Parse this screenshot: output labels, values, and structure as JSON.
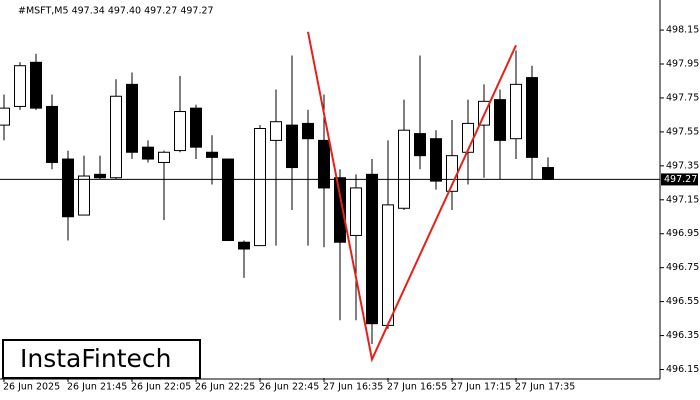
{
  "chart_data": {
    "type": "candlestick",
    "title": "#MSFT,M5  497.34 497.40 497.27 497.27",
    "logo": "InstaFintech",
    "categories": [
      "26 Jun 2025",
      null,
      null,
      null,
      "26 Jun 21:45",
      null,
      null,
      null,
      "26 Jun 22:05",
      null,
      null,
      null,
      "26 Jun 22:25",
      null,
      null,
      null,
      "26 Jun 22:45",
      null,
      null,
      null,
      "27 Jun 16:35",
      null,
      null,
      null,
      "27 Jun 16:55",
      null,
      null,
      null,
      "27 Jun 17:15",
      null,
      null,
      null,
      "27 Jun 17:35",
      null,
      null
    ],
    "open": [
      497.59,
      497.7,
      497.96,
      497.7,
      497.39,
      497.06,
      497.3,
      497.28,
      497.83,
      497.46,
      497.37,
      497.44,
      497.69,
      497.43,
      497.39,
      496.9,
      496.88,
      497.5,
      497.59,
      497.6,
      497.5,
      497.28,
      496.94,
      497.3,
      496.41,
      497.1,
      497.54,
      497.51,
      497.2,
      497.43,
      497.59,
      497.74,
      497.51,
      497.87,
      497.34
    ],
    "high": [
      497.77,
      497.96,
      498.01,
      497.77,
      497.44,
      497.41,
      497.41,
      497.86,
      497.9,
      497.5,
      497.44,
      497.88,
      497.71,
      497.53,
      497.39,
      496.91,
      497.59,
      497.8,
      498.0,
      497.68,
      497.77,
      497.33,
      497.3,
      497.39,
      497.5,
      497.74,
      498.0,
      497.56,
      497.62,
      497.74,
      497.83,
      497.8,
      498.03,
      497.94,
      497.4
    ],
    "low": [
      497.5,
      497.68,
      497.68,
      497.33,
      496.91,
      497.06,
      497.27,
      497.27,
      497.39,
      497.37,
      497.03,
      497.43,
      497.39,
      497.24,
      496.91,
      496.69,
      496.88,
      496.88,
      497.09,
      496.88,
      496.87,
      496.44,
      496.44,
      496.3,
      496.39,
      497.09,
      497.33,
      497.21,
      497.09,
      497.24,
      497.28,
      497.27,
      497.39,
      497.27,
      497.27
    ],
    "close": [
      497.69,
      497.94,
      497.69,
      497.37,
      497.05,
      497.29,
      497.28,
      497.76,
      497.43,
      497.39,
      497.43,
      497.67,
      497.46,
      497.4,
      496.91,
      496.86,
      497.57,
      497.61,
      497.34,
      497.51,
      497.22,
      496.9,
      497.22,
      496.42,
      497.12,
      497.56,
      497.41,
      497.26,
      497.41,
      497.6,
      497.73,
      497.5,
      497.83,
      497.4,
      497.27
    ],
    "up_color": "#ffffff",
    "down_color": "#000000",
    "current_price": 497.27,
    "pattern": {
      "color": "#e8201a",
      "points": [
        {
          "index": 19,
          "value": 498.14
        },
        {
          "index": 23,
          "value": 496.21
        },
        {
          "index": 32,
          "value": 498.06
        }
      ]
    },
    "ylim": [
      496.1,
      498.28
    ],
    "yticks": [
      498.15,
      497.95,
      497.75,
      497.55,
      497.35,
      497.15,
      496.95,
      496.75,
      496.55,
      496.35,
      496.15
    ]
  }
}
